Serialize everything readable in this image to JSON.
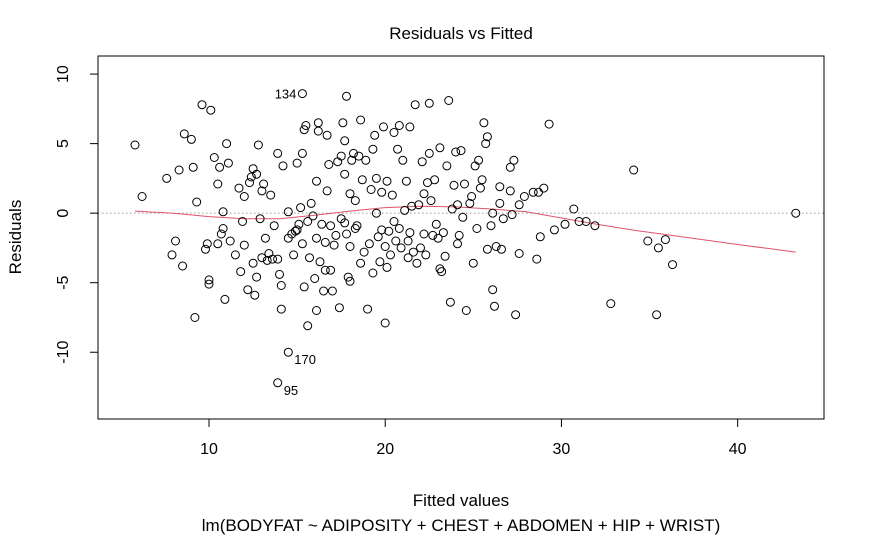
{
  "chart_data": {
    "type": "scatter",
    "title": "Residuals vs Fitted",
    "xlabel": "Fitted values",
    "subtitle": "lm(BODYFAT ~ ADIPOSITY + CHEST + ABDOMEN + HIP + WRIST)",
    "ylabel": "Residuals",
    "xlim": [
      3.7,
      44.9
    ],
    "ylim": [
      -14.8,
      11.3
    ],
    "x_ticks": [
      10,
      20,
      30,
      40
    ],
    "y_ticks": [
      -10,
      -5,
      0,
      5,
      10
    ],
    "reference_line_y": 0,
    "colors": {
      "points": "#000000",
      "smooth": "#DF536B",
      "reference": "#999999"
    },
    "points": [
      [
        5.8,
        4.9
      ],
      [
        6.2,
        1.2
      ],
      [
        7.6,
        2.5
      ],
      [
        7.9,
        -3.0
      ],
      [
        8.1,
        -2.0
      ],
      [
        8.3,
        3.1
      ],
      [
        8.5,
        -3.8
      ],
      [
        8.6,
        5.7
      ],
      [
        9.0,
        5.3
      ],
      [
        9.1,
        3.3
      ],
      [
        9.2,
        -7.5
      ],
      [
        9.3,
        0.8
      ],
      [
        9.6,
        7.8
      ],
      [
        9.8,
        -2.6
      ],
      [
        9.9,
        -2.2
      ],
      [
        10.0,
        -4.8
      ],
      [
        10.0,
        -5.1
      ],
      [
        10.1,
        7.4
      ],
      [
        10.3,
        4.0
      ],
      [
        10.5,
        2.1
      ],
      [
        10.5,
        -2.2
      ],
      [
        10.6,
        3.3
      ],
      [
        10.7,
        -1.5
      ],
      [
        10.8,
        -1.1
      ],
      [
        10.8,
        0.1
      ],
      [
        10.9,
        -6.2
      ],
      [
        11.0,
        5.0
      ],
      [
        11.1,
        3.6
      ],
      [
        11.2,
        -2.0
      ],
      [
        11.5,
        -3.0
      ],
      [
        11.7,
        1.8
      ],
      [
        11.8,
        -4.2
      ],
      [
        11.9,
        -0.6
      ],
      [
        12.0,
        1.2
      ],
      [
        12.0,
        -2.3
      ],
      [
        12.2,
        -5.5
      ],
      [
        12.3,
        2.2
      ],
      [
        12.4,
        2.6
      ],
      [
        12.5,
        3.2
      ],
      [
        12.5,
        -3.6
      ],
      [
        12.6,
        -5.9
      ],
      [
        12.7,
        -4.6
      ],
      [
        12.7,
        2.8
      ],
      [
        12.8,
        4.9
      ],
      [
        12.9,
        -0.4
      ],
      [
        13.0,
        -3.2
      ],
      [
        13.0,
        1.6
      ],
      [
        13.1,
        2.1
      ],
      [
        13.2,
        -1.8
      ],
      [
        13.3,
        -3.4
      ],
      [
        13.4,
        -2.9
      ],
      [
        13.5,
        1.3
      ],
      [
        13.6,
        -3.3
      ],
      [
        13.7,
        -0.9
      ],
      [
        13.9,
        4.3
      ],
      [
        13.9,
        -3.3
      ],
      [
        14.0,
        -4.4
      ],
      [
        14.1,
        -5.2
      ],
      [
        14.1,
        -6.9
      ],
      [
        14.2,
        3.4
      ],
      [
        14.5,
        0.1
      ],
      [
        14.5,
        -1.8
      ],
      [
        14.7,
        -1.5
      ],
      [
        14.8,
        -3.0
      ],
      [
        14.9,
        -1.3
      ],
      [
        15.0,
        3.6
      ],
      [
        15.0,
        -1.2
      ],
      [
        15.1,
        -0.8
      ],
      [
        15.2,
        0.4
      ],
      [
        15.3,
        4.3
      ],
      [
        15.3,
        -2.2
      ],
      [
        15.4,
        6.0
      ],
      [
        15.4,
        -5.3
      ],
      [
        15.5,
        6.3
      ],
      [
        15.6,
        -8.1
      ],
      [
        15.6,
        -0.6
      ],
      [
        15.7,
        -3.2
      ],
      [
        15.8,
        0.7
      ],
      [
        15.9,
        -0.2
      ],
      [
        16.0,
        -4.7
      ],
      [
        16.1,
        2.3
      ],
      [
        16.1,
        -1.8
      ],
      [
        16.1,
        -7.0
      ],
      [
        16.2,
        5.9
      ],
      [
        16.2,
        6.5
      ],
      [
        16.3,
        -3.5
      ],
      [
        16.4,
        -0.8
      ],
      [
        16.5,
        -5.6
      ],
      [
        16.6,
        -2.1
      ],
      [
        16.6,
        -4.1
      ],
      [
        16.7,
        5.6
      ],
      [
        16.7,
        1.6
      ],
      [
        16.8,
        3.5
      ],
      [
        16.9,
        -0.9
      ],
      [
        16.9,
        -4.1
      ],
      [
        17.0,
        -5.6
      ],
      [
        17.1,
        -2.3
      ],
      [
        17.2,
        -1.6
      ],
      [
        17.3,
        3.7
      ],
      [
        17.4,
        -6.8
      ],
      [
        17.5,
        4.1
      ],
      [
        17.5,
        -0.4
      ],
      [
        17.6,
        6.5
      ],
      [
        17.7,
        5.2
      ],
      [
        17.7,
        2.8
      ],
      [
        17.7,
        -0.7
      ],
      [
        17.8,
        8.4
      ],
      [
        17.8,
        -1.5
      ],
      [
        17.9,
        -4.6
      ],
      [
        18.0,
        -2.4
      ],
      [
        18.0,
        1.4
      ],
      [
        18.0,
        -4.9
      ],
      [
        18.1,
        3.8
      ],
      [
        18.2,
        4.3
      ],
      [
        18.3,
        -1.1
      ],
      [
        18.3,
        0.9
      ],
      [
        18.4,
        -0.9
      ],
      [
        18.5,
        4.1
      ],
      [
        18.6,
        6.7
      ],
      [
        18.6,
        -3.6
      ],
      [
        18.7,
        2.4
      ],
      [
        18.8,
        -2.8
      ],
      [
        18.9,
        3.8
      ],
      [
        19.0,
        -6.9
      ],
      [
        19.1,
        -2.2
      ],
      [
        19.2,
        1.7
      ],
      [
        19.3,
        -4.3
      ],
      [
        19.3,
        4.6
      ],
      [
        19.4,
        5.6
      ],
      [
        19.5,
        0.0
      ],
      [
        19.5,
        2.5
      ],
      [
        19.6,
        -1.7
      ],
      [
        19.7,
        -3.5
      ],
      [
        19.8,
        1.5
      ],
      [
        19.8,
        -1.2
      ],
      [
        19.9,
        6.2
      ],
      [
        20.0,
        -2.4
      ],
      [
        20.0,
        -7.9
      ],
      [
        20.1,
        2.3
      ],
      [
        20.1,
        -3.9
      ],
      [
        20.2,
        -1.3
      ],
      [
        20.3,
        -3.0
      ],
      [
        20.4,
        1.3
      ],
      [
        20.5,
        -0.6
      ],
      [
        20.5,
        5.8
      ],
      [
        20.6,
        -2.0
      ],
      [
        20.7,
        4.6
      ],
      [
        20.8,
        6.3
      ],
      [
        20.8,
        -1.1
      ],
      [
        20.9,
        -2.5
      ],
      [
        21.0,
        3.8
      ],
      [
        21.1,
        0.2
      ],
      [
        21.2,
        2.3
      ],
      [
        21.3,
        -3.2
      ],
      [
        21.3,
        -2.0
      ],
      [
        21.4,
        6.2
      ],
      [
        21.4,
        -1.4
      ],
      [
        21.5,
        0.5
      ],
      [
        21.6,
        -2.8
      ],
      [
        21.7,
        7.8
      ],
      [
        21.8,
        -3.6
      ],
      [
        21.9,
        0.6
      ],
      [
        22.0,
        -2.5
      ],
      [
        22.1,
        3.7
      ],
      [
        22.2,
        1.4
      ],
      [
        22.2,
        -1.5
      ],
      [
        22.3,
        -3.0
      ],
      [
        22.4,
        2.2
      ],
      [
        22.5,
        7.9
      ],
      [
        22.5,
        4.3
      ],
      [
        22.6,
        0.9
      ],
      [
        22.7,
        -1.6
      ],
      [
        22.8,
        2.4
      ],
      [
        22.9,
        -0.8
      ],
      [
        23.0,
        -1.8
      ],
      [
        23.1,
        4.7
      ],
      [
        23.1,
        -4.0
      ],
      [
        23.2,
        -4.2
      ],
      [
        23.3,
        -1.4
      ],
      [
        23.4,
        -3.1
      ],
      [
        23.5,
        3.4
      ],
      [
        23.6,
        8.1
      ],
      [
        23.7,
        -6.4
      ],
      [
        23.8,
        0.3
      ],
      [
        23.9,
        2.0
      ],
      [
        24.0,
        4.4
      ],
      [
        24.1,
        0.6
      ],
      [
        24.1,
        -2.2
      ],
      [
        24.2,
        -1.6
      ],
      [
        24.3,
        4.5
      ],
      [
        24.4,
        -0.3
      ],
      [
        24.5,
        2.1
      ],
      [
        24.6,
        -7.0
      ],
      [
        24.8,
        0.7
      ],
      [
        24.9,
        1.2
      ],
      [
        25.0,
        -3.6
      ],
      [
        25.1,
        3.4
      ],
      [
        25.2,
        -1.1
      ],
      [
        25.3,
        3.8
      ],
      [
        25.4,
        1.8
      ],
      [
        25.5,
        2.4
      ],
      [
        25.6,
        6.5
      ],
      [
        25.7,
        5.0
      ],
      [
        25.8,
        5.5
      ],
      [
        25.8,
        -2.6
      ],
      [
        26.0,
        -0.9
      ],
      [
        26.1,
        -5.5
      ],
      [
        26.1,
        0.0
      ],
      [
        26.2,
        -6.7
      ],
      [
        26.3,
        -2.4
      ],
      [
        26.5,
        1.9
      ],
      [
        26.5,
        0.7
      ],
      [
        26.6,
        -2.6
      ],
      [
        26.7,
        -0.4
      ],
      [
        27.1,
        3.3
      ],
      [
        27.1,
        1.6
      ],
      [
        27.2,
        -0.1
      ],
      [
        27.3,
        3.8
      ],
      [
        27.4,
        -7.3
      ],
      [
        27.6,
        0.6
      ],
      [
        27.6,
        -2.9
      ],
      [
        27.9,
        1.2
      ],
      [
        28.4,
        1.5
      ],
      [
        28.6,
        -3.3
      ],
      [
        28.7,
        1.5
      ],
      [
        28.8,
        -1.7
      ],
      [
        29.0,
        1.8
      ],
      [
        29.3,
        6.4
      ],
      [
        29.6,
        -1.2
      ],
      [
        30.2,
        -0.8
      ],
      [
        30.7,
        0.3
      ],
      [
        31.0,
        -0.6
      ],
      [
        31.4,
        -0.6
      ],
      [
        31.9,
        -0.9
      ],
      [
        32.8,
        -6.5
      ],
      [
        34.1,
        3.1
      ],
      [
        34.9,
        -2.0
      ],
      [
        35.4,
        -7.3
      ],
      [
        35.5,
        -2.5
      ],
      [
        35.9,
        -1.9
      ],
      [
        36.3,
        -3.7
      ],
      [
        43.3,
        0.0
      ],
      [
        15.3,
        8.6
      ],
      [
        14.5,
        -10.0
      ],
      [
        13.9,
        -12.2
      ]
    ],
    "labeled_points": [
      {
        "label": "134",
        "x": 15.3,
        "y": 8.6
      },
      {
        "label": "170",
        "x": 14.5,
        "y": -10.0
      },
      {
        "label": "95",
        "x": 13.9,
        "y": -12.2
      }
    ],
    "smooth_line": [
      [
        5.8,
        0.15
      ],
      [
        8,
        0.0
      ],
      [
        10,
        -0.25
      ],
      [
        12,
        -0.4
      ],
      [
        14,
        -0.4
      ],
      [
        16,
        -0.15
      ],
      [
        18,
        0.15
      ],
      [
        20,
        0.4
      ],
      [
        22,
        0.5
      ],
      [
        24,
        0.45
      ],
      [
        26,
        0.3
      ],
      [
        28,
        0.1
      ],
      [
        30,
        -0.35
      ],
      [
        32,
        -0.8
      ],
      [
        34,
        -1.2
      ],
      [
        36,
        -1.55
      ],
      [
        38,
        -1.9
      ],
      [
        40,
        -2.25
      ],
      [
        43.3,
        -2.8
      ]
    ]
  }
}
